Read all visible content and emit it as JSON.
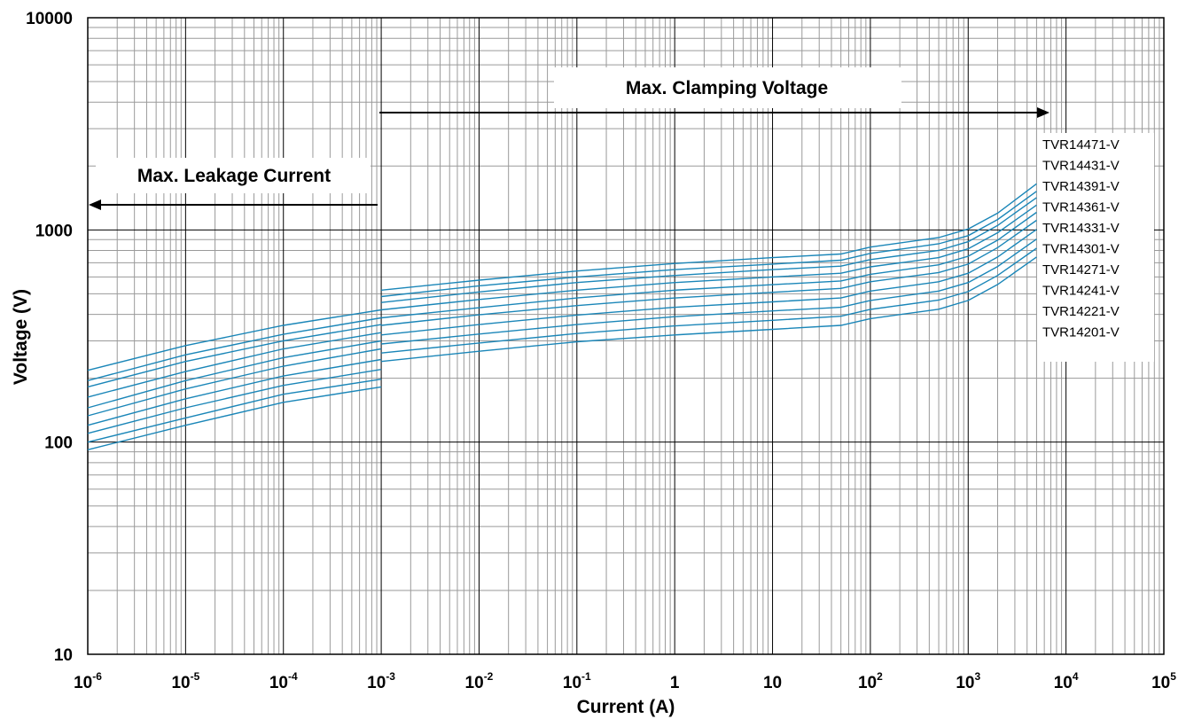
{
  "chart_data": {
    "type": "line",
    "title": "",
    "xlabel": "Current (A)",
    "ylabel": "Voltage   (V)",
    "xscale": "log",
    "yscale": "log",
    "xlim": [
      1e-06,
      100000
    ],
    "ylim": [
      10,
      10000
    ],
    "grid": true,
    "legend_position": "right",
    "x_tick_labels": [
      {
        "base": "10",
        "exp": "-6"
      },
      {
        "base": "10",
        "exp": "-5"
      },
      {
        "base": "10",
        "exp": "-4"
      },
      {
        "base": "10",
        "exp": "-3"
      },
      {
        "base": "10",
        "exp": "-2"
      },
      {
        "base": "10",
        "exp": "-1"
      },
      {
        "base": "1",
        "exp": ""
      },
      {
        "base": "10",
        "exp": ""
      },
      {
        "base": "10",
        "exp": "2"
      },
      {
        "base": "10",
        "exp": "3"
      },
      {
        "base": "10",
        "exp": "4"
      },
      {
        "base": "10",
        "exp": "5"
      }
    ],
    "y_tick_labels": [
      "10",
      "100",
      "1000",
      "10000"
    ],
    "annotations": {
      "clamping": "Max.  Clamping  Voltage",
      "leakage": "Max. Leakage Current"
    },
    "line_color": "#1a86b8",
    "leakage_x": [
      1e-06,
      1e-05,
      0.0001,
      0.001
    ],
    "clamping_x": [
      0.001,
      0.01,
      0.1,
      1,
      10,
      50,
      100,
      500,
      1000,
      2000,
      5000
    ],
    "series": [
      {
        "name": "TVR14471-V",
        "leakage": [
          218,
          285,
          355,
          420
        ],
        "clamping": [
          520,
          580,
          640,
          695,
          740,
          770,
          830,
          920,
          1010,
          1200,
          1650
        ]
      },
      {
        "name": "TVR14431-V",
        "leakage": [
          195,
          258,
          322,
          385
        ],
        "clamping": [
          485,
          545,
          600,
          650,
          690,
          720,
          775,
          860,
          940,
          1120,
          1520
        ]
      },
      {
        "name": "TVR14391-V",
        "leakage": [
          182,
          240,
          300,
          358
        ],
        "clamping": [
          455,
          510,
          565,
          610,
          650,
          675,
          725,
          800,
          880,
          1050,
          1420
        ]
      },
      {
        "name": "TVR14361-V",
        "leakage": [
          163,
          215,
          275,
          328
        ],
        "clamping": [
          420,
          470,
          520,
          565,
          600,
          625,
          670,
          740,
          815,
          970,
          1310
        ]
      },
      {
        "name": "TVR14331-V",
        "leakage": [
          145,
          195,
          250,
          300
        ],
        "clamping": [
          385,
          430,
          478,
          520,
          552,
          575,
          618,
          685,
          752,
          895,
          1210
        ]
      },
      {
        "name": "TVR14301-V",
        "leakage": [
          133,
          178,
          228,
          275
        ],
        "clamping": [
          355,
          398,
          440,
          478,
          508,
          530,
          570,
          630,
          690,
          825,
          1110
        ]
      },
      {
        "name": "TVR14271-V",
        "leakage": [
          120,
          160,
          205,
          245
        ],
        "clamping": [
          320,
          358,
          397,
          432,
          458,
          478,
          515,
          570,
          625,
          745,
          1005
        ]
      },
      {
        "name": "TVR14241-V",
        "leakage": [
          110,
          145,
          185,
          220
        ],
        "clamping": [
          290,
          323,
          358,
          390,
          415,
          432,
          465,
          515,
          565,
          672,
          905
        ]
      },
      {
        "name": "TVR14221-V",
        "leakage": [
          100,
          130,
          168,
          198
        ],
        "clamping": [
          263,
          293,
          325,
          353,
          375,
          392,
          422,
          467,
          512,
          610,
          820
        ]
      },
      {
        "name": "TVR14201-V",
        "leakage": [
          92,
          120,
          154,
          182
        ],
        "clamping": [
          240,
          268,
          297,
          320,
          340,
          355,
          382,
          423,
          465,
          553,
          745
        ]
      }
    ]
  }
}
